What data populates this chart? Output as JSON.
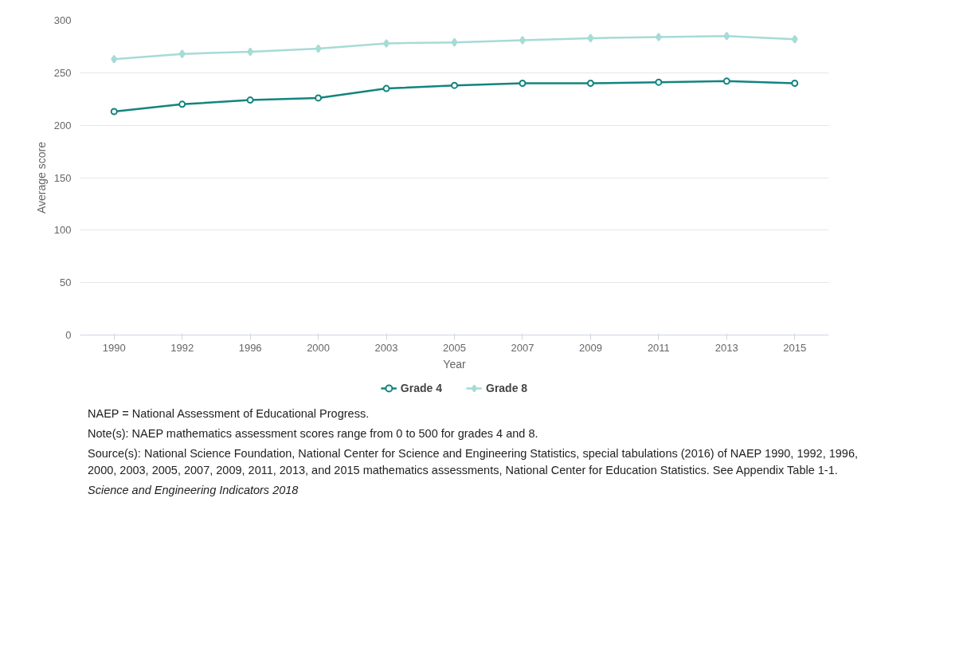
{
  "chart_data": {
    "type": "line",
    "xlabel": "Year",
    "ylabel": "Average score",
    "categories": [
      "1990",
      "1992",
      "1996",
      "2000",
      "2003",
      "2005",
      "2007",
      "2009",
      "2011",
      "2013",
      "2015"
    ],
    "series": [
      {
        "name": "Grade 4",
        "color": "#13847f",
        "marker": "circle",
        "values": [
          213,
          220,
          224,
          226,
          235,
          238,
          240,
          240,
          241,
          242,
          240
        ]
      },
      {
        "name": "Grade 8",
        "color": "#a6dbd6",
        "marker": "diamond",
        "values": [
          263,
          268,
          270,
          273,
          278,
          279,
          281,
          283,
          284,
          285,
          282
        ]
      }
    ],
    "ylim": [
      0,
      300
    ],
    "yticks": [
      0,
      50,
      100,
      150,
      200,
      250,
      300
    ],
    "grid": "y",
    "legend": "bottom",
    "line_style": "solid",
    "annotations": [
      "NAEP = National Assessment of Educational Progress.",
      "Note(s): NAEP mathematics assessment scores range from 0 to 500 for grades 4 and 8.",
      "Source(s): National Science Foundation, National Center for Science and Engineering Statistics, special tabulations (2016) of NAEP 1990, 1992, 1996, 2000, 2003, 2005, 2007, 2009, 2011, 2013, and 2015 mathematics assessments, National Center for Education Statistics. See Appendix Table 1-1.",
      "Science and Engineering Indicators 2018"
    ]
  }
}
